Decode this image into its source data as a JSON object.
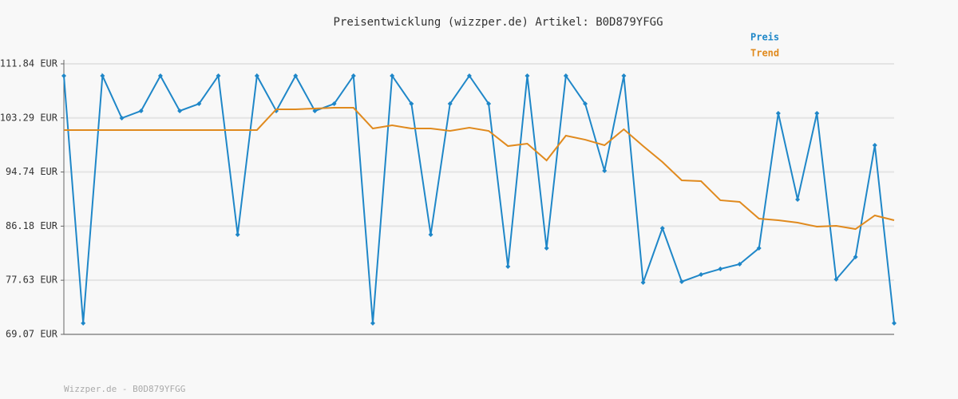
{
  "chart_data": {
    "type": "line",
    "title": "Preisentwicklung (wizzper.de) Artikel: B0D879YFGG",
    "footer": "Wizzper.de - B0D879YFGG",
    "categories": [
      null,
      null,
      null,
      null,
      null,
      null,
      null,
      null,
      null,
      null,
      null,
      null,
      null,
      null,
      null,
      null,
      null,
      null,
      null,
      null,
      null,
      null,
      null,
      null,
      null,
      null,
      null,
      null,
      null,
      null,
      null,
      null,
      null,
      null,
      null,
      null,
      null,
      null,
      null,
      null,
      null,
      null,
      null,
      null
    ],
    "series": [
      {
        "name": "Preis",
        "color": "#1f87c8",
        "markers": true,
        "values": [
          109.95,
          70.84,
          109.95,
          103.26,
          104.4,
          109.95,
          104.4,
          105.53,
          109.95,
          84.84,
          109.95,
          104.4,
          109.95,
          104.4,
          105.53,
          109.95,
          70.84,
          109.95,
          105.53,
          84.84,
          105.53,
          109.95,
          105.53,
          79.79,
          109.95,
          82.69,
          109.95,
          105.53,
          94.93,
          109.95,
          77.27,
          85.85,
          77.4,
          78.53,
          79.41,
          80.17,
          82.69,
          104.02,
          90.39,
          104.02,
          77.77,
          81.31,
          98.97,
          70.84
        ]
      },
      {
        "name": "Trend",
        "color": "#e08a1e",
        "markers": false,
        "values": [
          101.37,
          101.37,
          101.37,
          101.37,
          101.37,
          101.37,
          101.37,
          101.37,
          101.37,
          101.37,
          101.37,
          104.65,
          104.65,
          104.78,
          104.9,
          104.9,
          101.62,
          102.12,
          101.62,
          101.62,
          101.24,
          101.75,
          101.24,
          98.84,
          99.22,
          96.57,
          100.48,
          99.85,
          98.97,
          101.49,
          98.84,
          96.32,
          93.42,
          93.29,
          90.27,
          90.01,
          87.36,
          87.11,
          86.73,
          86.1,
          86.23,
          85.72,
          87.87,
          87.11
        ]
      }
    ],
    "ylim": [
      69.07,
      111.84
    ],
    "yticks": [
      {
        "value": 69.07,
        "label": "69.07 EUR"
      },
      {
        "value": 77.63,
        "label": "77.63 EUR"
      },
      {
        "value": 86.18,
        "label": "86.18 EUR"
      },
      {
        "value": 94.74,
        "label": "94.74 EUR"
      },
      {
        "value": 103.29,
        "label": "103.29 EUR"
      },
      {
        "value": 111.84,
        "label": "111.84 EUR"
      }
    ],
    "grid": true
  }
}
